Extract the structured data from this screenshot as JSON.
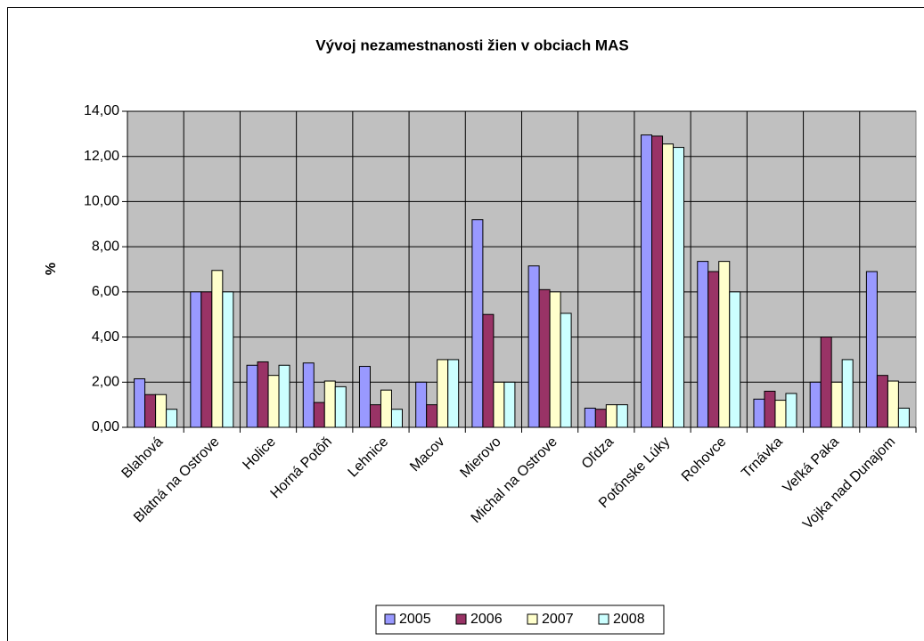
{
  "chart_data": {
    "type": "bar",
    "title": "Vývoj nezamestnanosti žien v obciach MAS",
    "y_label": "%",
    "categories": [
      "Blahová",
      "Blatná na Ostrove",
      "Holice",
      "Horná Potôň",
      "Lehnice",
      "Macov",
      "Mierovo",
      "Michal na Ostrove",
      "Oľdza",
      "Potônske Lúky",
      "Rohovce",
      "Trnávka",
      "Veľká Paka",
      "Vojka nad Dunajom"
    ],
    "series": [
      {
        "name": "2005",
        "color": "#9999ff",
        "values": [
          2.15,
          6.0,
          2.75,
          2.85,
          2.7,
          2.0,
          9.2,
          7.15,
          0.85,
          12.95,
          7.35,
          1.25,
          2.0,
          6.9
        ]
      },
      {
        "name": "2006",
        "color": "#993366",
        "values": [
          1.45,
          6.0,
          2.9,
          1.1,
          1.0,
          1.0,
          5.0,
          6.1,
          0.8,
          12.9,
          6.9,
          1.6,
          4.0,
          2.3
        ]
      },
      {
        "name": "2007",
        "color": "#ffffcc",
        "values": [
          1.45,
          6.95,
          2.3,
          2.05,
          1.65,
          3.0,
          2.0,
          6.0,
          1.0,
          12.55,
          7.35,
          1.2,
          2.0,
          2.05
        ]
      },
      {
        "name": "2008",
        "color": "#ccffff",
        "values": [
          0.8,
          6.0,
          2.75,
          1.8,
          0.8,
          3.0,
          2.0,
          5.05,
          1.0,
          12.4,
          6.0,
          1.5,
          3.0,
          0.85
        ]
      }
    ],
    "ylim": [
      0,
      14
    ],
    "yticks": [
      {
        "value": 0,
        "label": "0,00"
      },
      {
        "value": 2,
        "label": "2,00"
      },
      {
        "value": 4,
        "label": "4,00"
      },
      {
        "value": 6,
        "label": "6,00"
      },
      {
        "value": 8,
        "label": "8,00"
      },
      {
        "value": 10,
        "label": "10,00"
      },
      {
        "value": 12,
        "label": "12,00"
      },
      {
        "value": 14,
        "label": "14,00"
      }
    ],
    "grid": true,
    "plot_background": "#c0c0c0",
    "legend": "bottom"
  }
}
